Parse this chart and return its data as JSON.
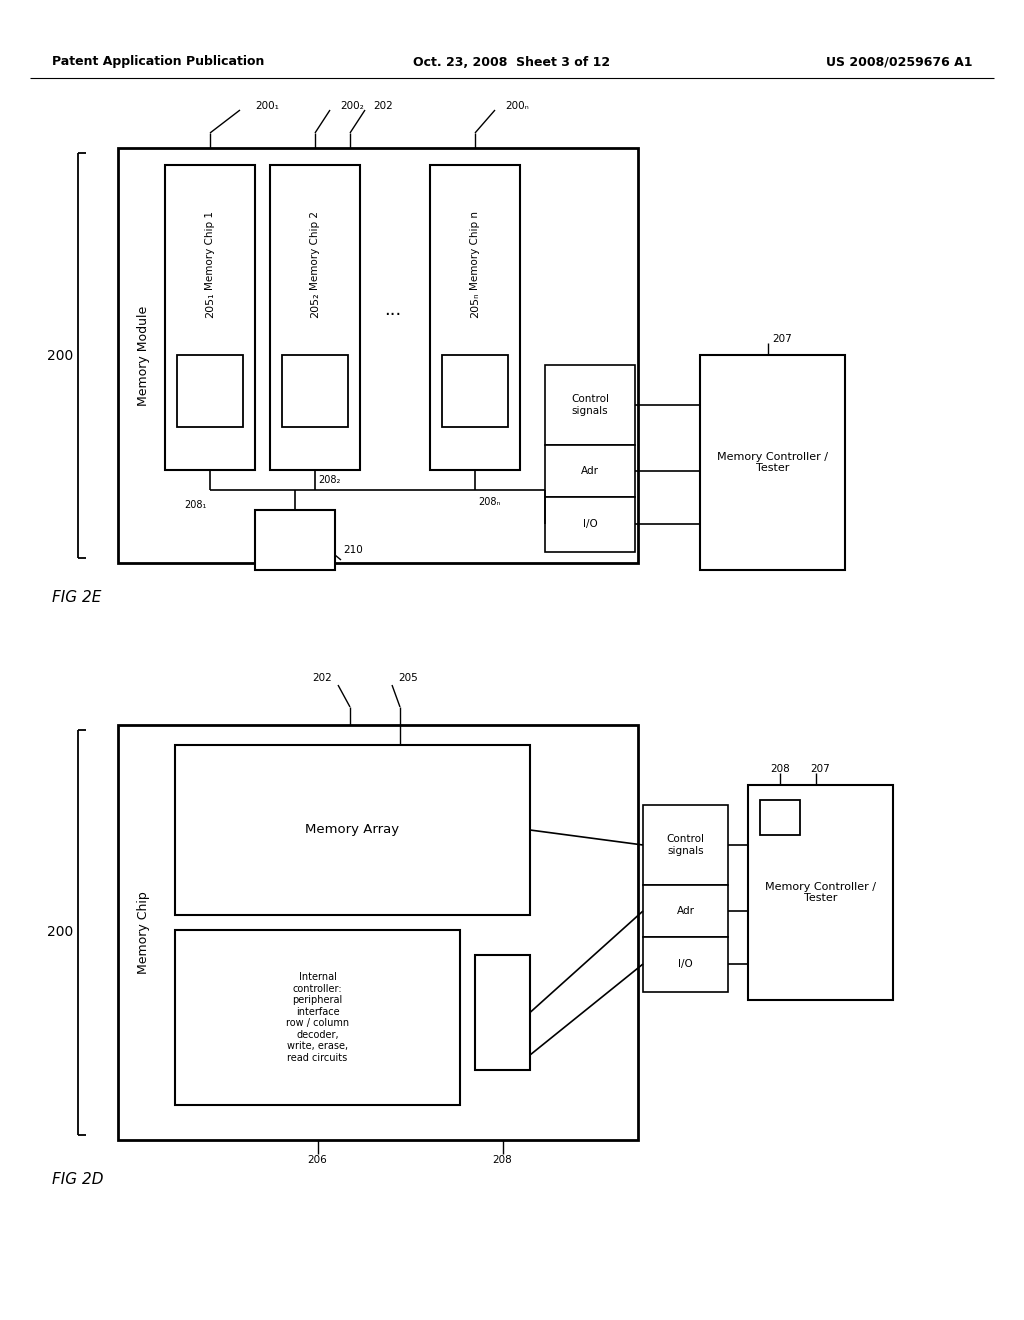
{
  "bg_color": "#ffffff",
  "header_left": "Patent Application Publication",
  "header_center": "Oct. 23, 2008  Sheet 3 of 12",
  "header_right": "US 2008/0259676 A1"
}
